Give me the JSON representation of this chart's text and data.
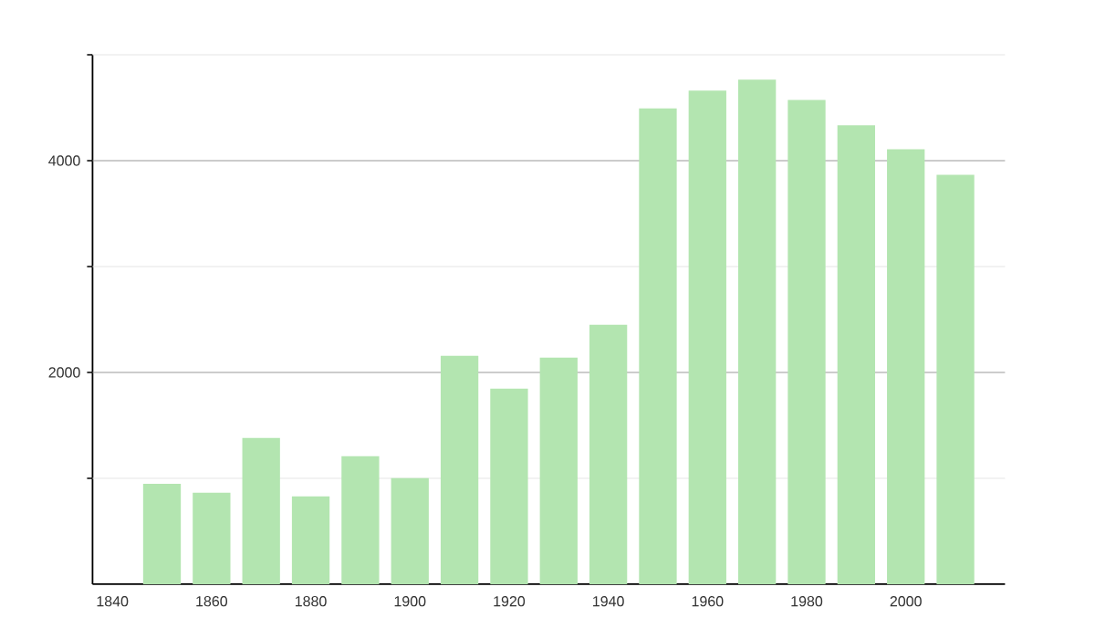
{
  "chart_data": {
    "type": "bar",
    "x": [
      1850,
      1860,
      1870,
      1880,
      1890,
      1900,
      1910,
      1920,
      1930,
      1940,
      1950,
      1960,
      1970,
      1980,
      1990,
      2000,
      2010
    ],
    "values": [
      949,
      863,
      1381,
      829,
      1208,
      1001,
      2158,
      1847,
      2140,
      2451,
      4494,
      4661,
      4764,
      4574,
      4333,
      4108,
      3867
    ],
    "color": "#b3e5b0",
    "xlim": [
      1836,
      2020
    ],
    "xticks": [
      1840,
      1860,
      1880,
      1900,
      1920,
      1940,
      1960,
      1980,
      2000
    ],
    "ylim": [
      0,
      5000
    ],
    "yticks": [
      {
        "value": 1000,
        "label": null
      },
      2000,
      {
        "value": 3000,
        "label": null
      },
      4000,
      {
        "value": 5000,
        "label": null
      }
    ],
    "grid": "y"
  }
}
